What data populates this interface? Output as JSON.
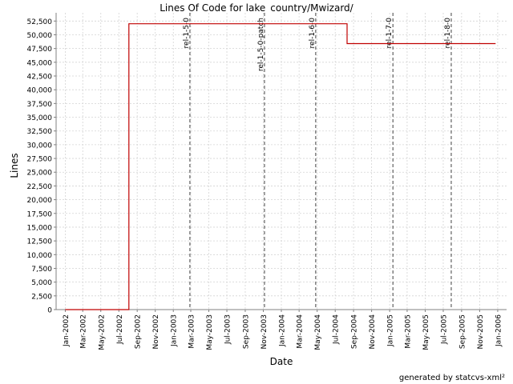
{
  "chart_data": {
    "type": "line",
    "title": "Lines Of Code for lake_country/Mwizard/",
    "xlabel": "Date",
    "ylabel": "Lines",
    "footer": "generated by statcvs-xml²",
    "ylim": [
      0,
      54000
    ],
    "yticks": [
      0,
      2500,
      5000,
      7500,
      10000,
      12500,
      15000,
      17500,
      20000,
      22500,
      25000,
      27500,
      30000,
      32500,
      35000,
      37500,
      40000,
      42500,
      45000,
      47500,
      50000,
      52500
    ],
    "xlim": [
      "2001-12-01",
      "2006-01-31"
    ],
    "xticks": [
      "2002-01-01",
      "2002-03-01",
      "2002-05-01",
      "2002-07-01",
      "2002-09-01",
      "2002-11-01",
      "2003-01-01",
      "2003-03-01",
      "2003-05-01",
      "2003-07-01",
      "2003-09-01",
      "2003-11-01",
      "2004-01-01",
      "2004-03-01",
      "2004-05-01",
      "2004-07-01",
      "2004-09-01",
      "2004-11-01",
      "2005-01-01",
      "2005-03-01",
      "2005-05-01",
      "2005-07-01",
      "2005-09-01",
      "2005-11-01",
      "2006-01-01"
    ],
    "xtick_labels": [
      "Jan-2002",
      "Mar-2002",
      "May-2002",
      "Jul-2002",
      "Sep-2002",
      "Nov-2002",
      "Jan-2003",
      "Mar-2003",
      "May-2003",
      "Jul-2003",
      "Sep-2003",
      "Nov-2003",
      "Jan-2004",
      "Mar-2004",
      "May-2004",
      "Jul-2004",
      "Sep-2004",
      "Nov-2004",
      "Jan-2005",
      "Mar-2005",
      "May-2005",
      "Jul-2005",
      "Sep-2005",
      "Nov-2005",
      "Jan-2006"
    ],
    "grid": true,
    "series": [
      {
        "color": "#c00000",
        "step": true,
        "points": [
          {
            "x": "2002-01-01",
            "y": 0
          },
          {
            "x": "2002-08-04",
            "y": 0
          },
          {
            "x": "2002-08-04",
            "y": 52000
          },
          {
            "x": "2004-08-10",
            "y": 52000
          },
          {
            "x": "2004-08-10",
            "y": 48400
          },
          {
            "x": "2005-12-25",
            "y": 48400
          }
        ]
      }
    ],
    "markers": [
      {
        "label": "rel-1-5-0",
        "x": "2003-02-26"
      },
      {
        "label": "rel-1-5-0-patch",
        "x": "2003-11-05"
      },
      {
        "label": "rel-1-6-0",
        "x": "2004-04-26"
      },
      {
        "label": "rel-1-7-0",
        "x": "2005-01-12"
      },
      {
        "label": "rel-1-8-0",
        "x": "2005-07-28"
      }
    ]
  }
}
